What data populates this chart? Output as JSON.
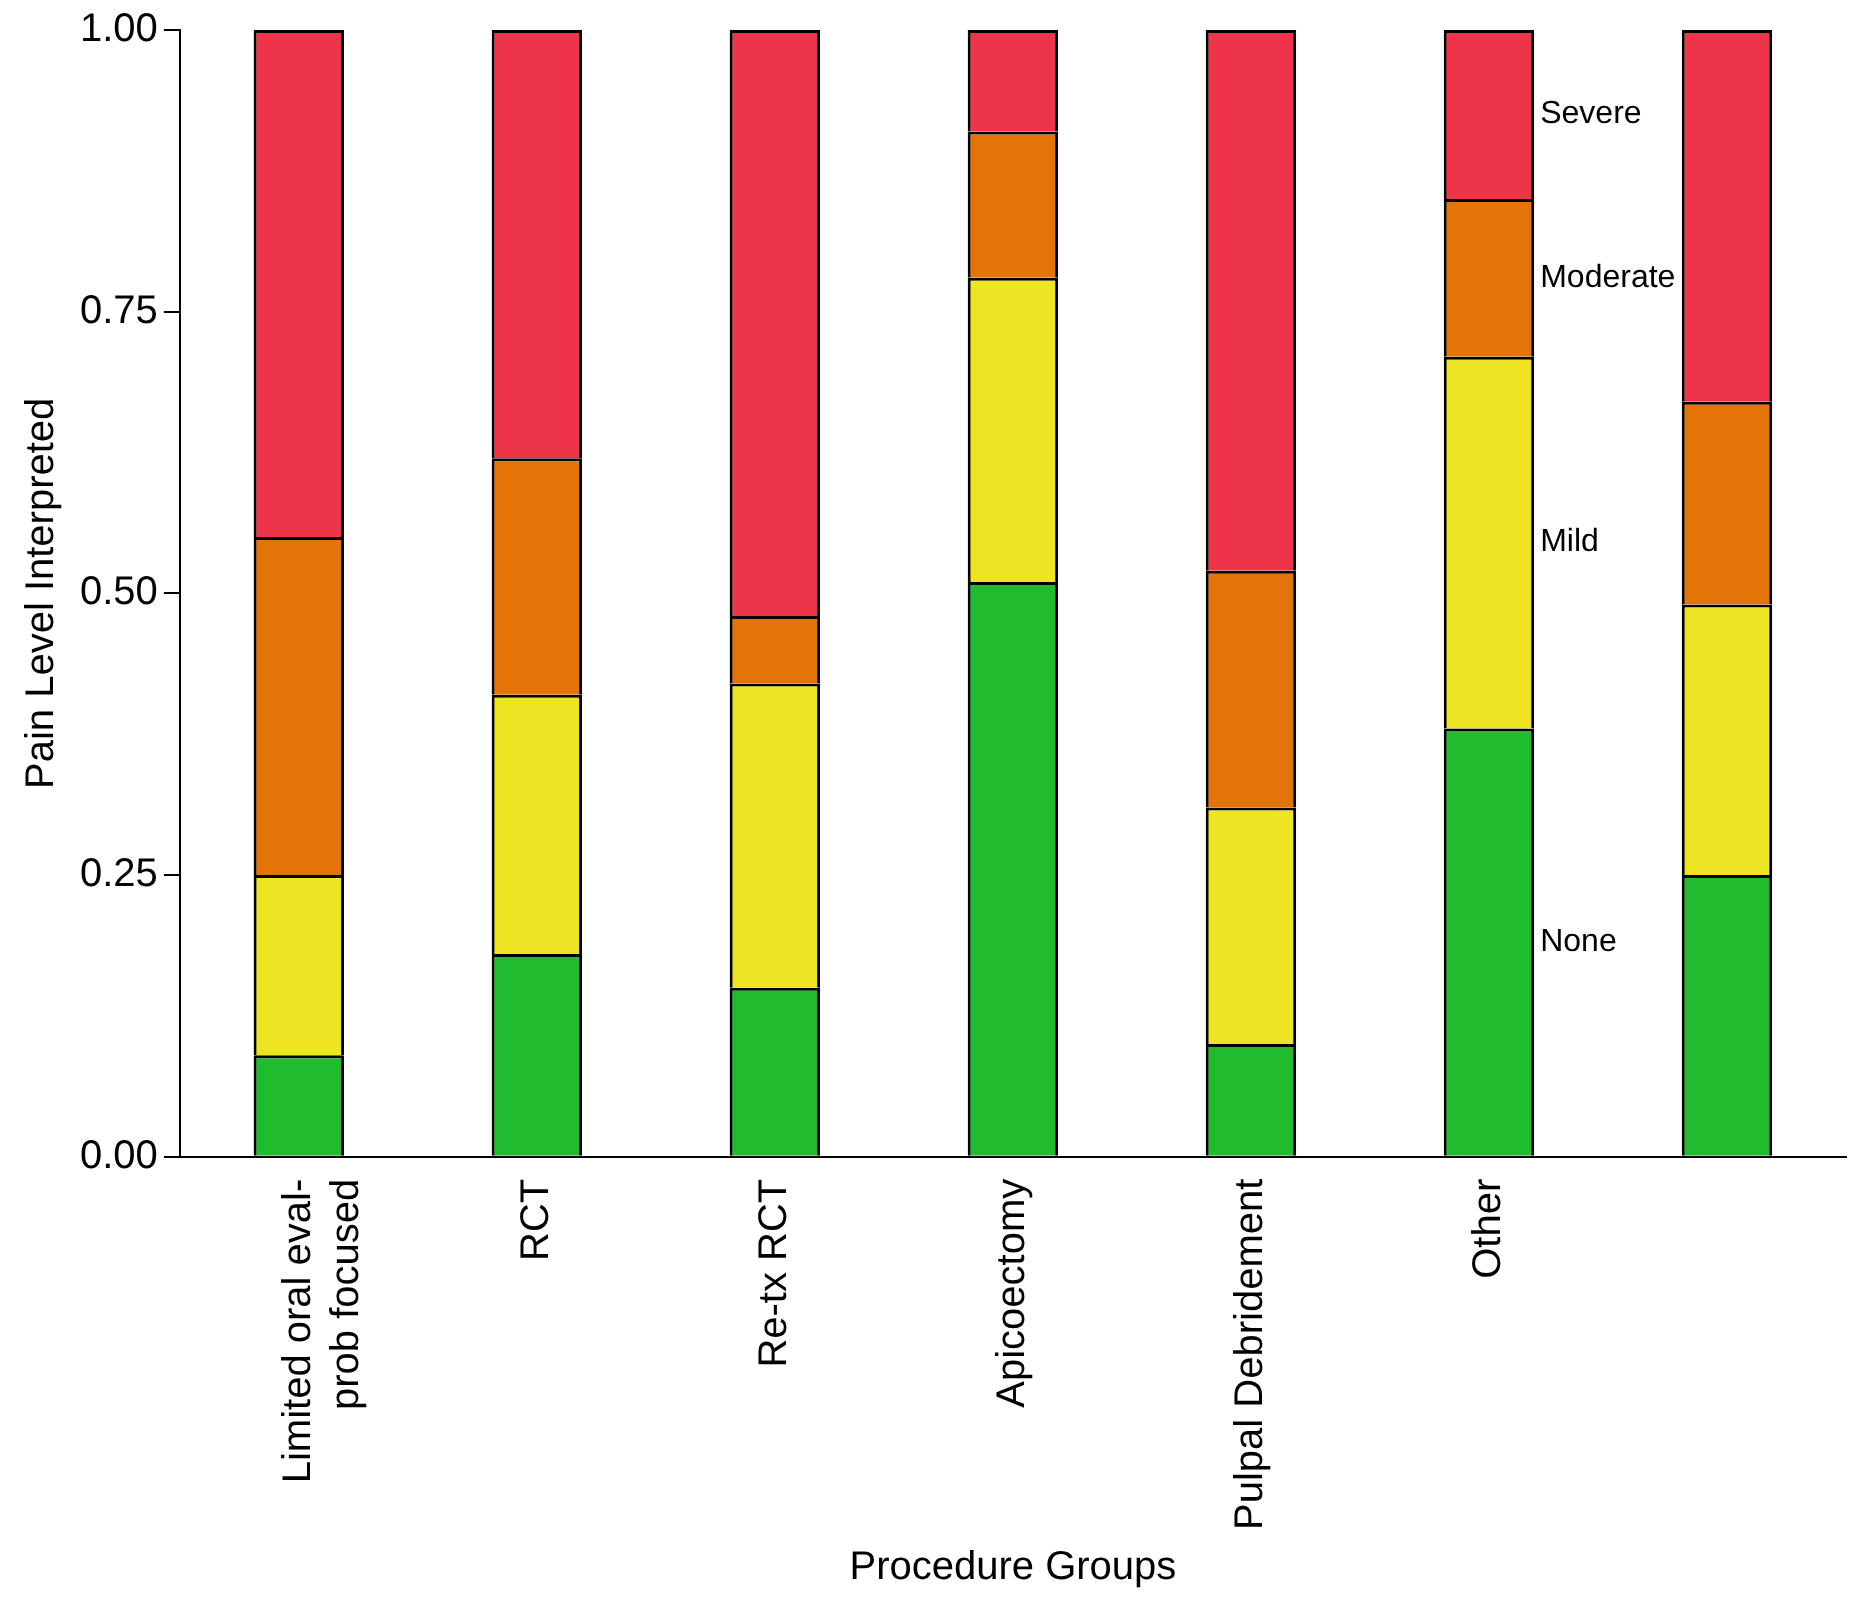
{
  "chart_data": {
    "type": "bar",
    "stacked": true,
    "xlabel": "Procedure Groups",
    "ylabel": "Pain Level Interpreted",
    "categories": [
      "Limited oral eval-prob focused",
      "RCT",
      "Re-tx RCT",
      "Apicoectomy",
      "Pulpal Debridement",
      "Other",
      null
    ],
    "series": [
      {
        "name": "None",
        "color": "#21bb2f",
        "values": [
          0.09,
          0.18,
          0.15,
          0.51,
          0.1,
          0.38,
          0.25
        ]
      },
      {
        "name": "Mild",
        "color": "#eee423",
        "values": [
          0.16,
          0.23,
          0.27,
          0.27,
          0.21,
          0.33,
          0.24
        ]
      },
      {
        "name": "Moderate",
        "color": "#e57408",
        "values": [
          0.3,
          0.21,
          0.06,
          0.13,
          0.21,
          0.14,
          0.18
        ]
      },
      {
        "name": "Severe",
        "color": "#ee3448",
        "values": [
          0.45,
          0.38,
          0.52,
          0.09,
          0.48,
          0.15,
          0.33
        ]
      }
    ],
    "ylim": [
      0,
      1
    ],
    "yticks": [
      {
        "value": 0,
        "label": "0.00"
      },
      {
        "value": 0.25,
        "label": "0.25"
      },
      {
        "value": 0.5,
        "label": "0.50"
      },
      {
        "value": 0.75,
        "label": "0.75"
      },
      {
        "value": 1,
        "label": "1.00"
      }
    ],
    "grid": false,
    "legend": false
  }
}
